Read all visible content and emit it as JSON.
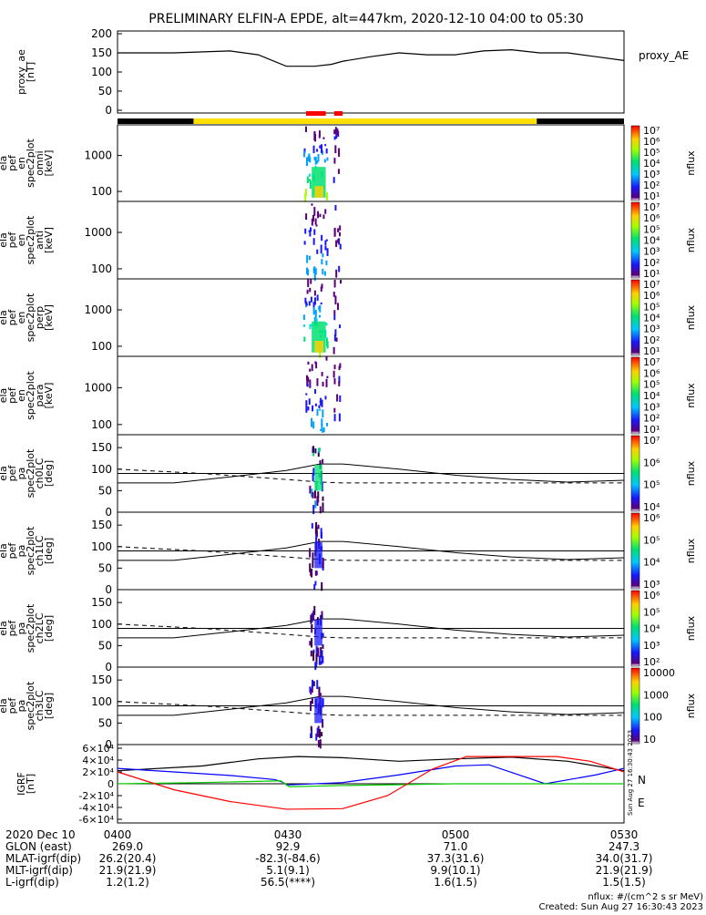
{
  "title": "PRELIMINARY ELFIN-A EPDE, alt=447km, 2020-12-10 04:00 to 05:30",
  "colors": {
    "line": "#000000",
    "yellow": "#ffe000",
    "red": "#ff0000",
    "igrf_x": "#0000ff",
    "igrf_y": "#00cc00",
    "igrf_z": "#ff0000"
  },
  "chart_data": [
    {
      "type": "line",
      "panel": "proxy_ae",
      "ylabel_lines": [
        "proxy_ae",
        "[nT]"
      ],
      "ylim": [
        0,
        200
      ],
      "yticks": [
        "0",
        "50",
        "100",
        "150",
        "200"
      ],
      "series": [
        {
          "name": "proxy_AE",
          "x_min": [
            0,
            10,
            20,
            25,
            30,
            35,
            38,
            40,
            45,
            50,
            55,
            60,
            65,
            70,
            75,
            80,
            85,
            90
          ],
          "values": [
            150,
            150,
            155,
            145,
            115,
            115,
            120,
            128,
            140,
            150,
            145,
            145,
            155,
            158,
            150,
            150,
            140,
            130
          ]
        }
      ],
      "legend": "proxy_AE"
    },
    {
      "type": "heatmap",
      "panel": "spec-omni",
      "ylabel_lines": [
        "ela",
        "pef",
        "en",
        "spec2plot",
        "omni",
        "[keV]"
      ],
      "yticks": [
        "100",
        "1000"
      ],
      "yscale": "log",
      "colorbar_ticks": [
        "10¹",
        "10²",
        "10³",
        "10⁴",
        "10⁵",
        "10⁶",
        "10⁷"
      ],
      "colorbar_label": "nflux"
    },
    {
      "type": "heatmap",
      "panel": "spec-anti",
      "ylabel_lines": [
        "ela",
        "pef",
        "en",
        "spec2plot",
        "anti",
        "[keV]"
      ],
      "yticks": [
        "100",
        "1000"
      ],
      "yscale": "log",
      "colorbar_ticks": [
        "10¹",
        "10²",
        "10³",
        "10⁴",
        "10⁵",
        "10⁶",
        "10⁷"
      ],
      "colorbar_label": "nflux"
    },
    {
      "type": "heatmap",
      "panel": "spec-perp",
      "ylabel_lines": [
        "ela",
        "pef",
        "en",
        "spec2plot",
        "perp",
        "[keV]"
      ],
      "yticks": [
        "100",
        "1000"
      ],
      "yscale": "log",
      "colorbar_ticks": [
        "10¹",
        "10²",
        "10³",
        "10⁴",
        "10⁵",
        "10⁶",
        "10⁷"
      ],
      "colorbar_label": "nflux"
    },
    {
      "type": "heatmap",
      "panel": "spec-para",
      "ylabel_lines": [
        "ela",
        "pef",
        "en",
        "spec2plot",
        "para",
        "[keV]"
      ],
      "yticks": [
        "100",
        "1000"
      ],
      "yscale": "log",
      "colorbar_ticks": [
        "10¹",
        "10²",
        "10³",
        "10⁴",
        "10⁵",
        "10⁶",
        "10⁷"
      ],
      "colorbar_label": "nflux"
    },
    {
      "type": "heatmap",
      "panel": "pa-ch0",
      "ylabel_lines": [
        "ela",
        "pef",
        "pa",
        "spec2plot",
        "ch0LC",
        "[deg]"
      ],
      "ylim": [
        0,
        180
      ],
      "yticks": [
        "0",
        "50",
        "100",
        "150"
      ],
      "colorbar_ticks": [
        "10⁴",
        "10⁵",
        "10⁶",
        "10⁷"
      ],
      "colorbar_label": "nflux"
    },
    {
      "type": "heatmap",
      "panel": "pa-ch1",
      "ylabel_lines": [
        "ela",
        "pef",
        "pa",
        "spec2plot",
        "ch1LC",
        "[deg]"
      ],
      "ylim": [
        0,
        180
      ],
      "yticks": [
        "0",
        "50",
        "100",
        "150"
      ],
      "colorbar_ticks": [
        "10³",
        "10⁴",
        "10⁵",
        "10⁶"
      ],
      "colorbar_label": "nflux"
    },
    {
      "type": "heatmap",
      "panel": "pa-ch2",
      "ylabel_lines": [
        "ela",
        "pef",
        "pa",
        "spec2plot",
        "ch2LC",
        "[deg]"
      ],
      "ylim": [
        0,
        180
      ],
      "yticks": [
        "0",
        "50",
        "100",
        "150"
      ],
      "colorbar_ticks": [
        "10²",
        "10³",
        "10⁴",
        "10⁵",
        "10⁶"
      ],
      "colorbar_label": "nflux"
    },
    {
      "type": "heatmap",
      "panel": "pa-ch3",
      "ylabel_lines": [
        "ela",
        "pef",
        "pa",
        "spec2plot",
        "ch3LC",
        "[deg]"
      ],
      "ylim": [
        0,
        180
      ],
      "yticks": [
        "0",
        "50",
        "100",
        "150"
      ],
      "colorbar_ticks": [
        "10",
        "100",
        "1000",
        "10000"
      ],
      "colorbar_label": "nflux"
    },
    {
      "type": "line",
      "panel": "igrf",
      "ylabel_lines": [
        "IGRF",
        "[nT]"
      ],
      "ylim": [
        -60000,
        60000
      ],
      "yticks": [
        "-6×10⁴",
        "-4×10⁴",
        "-2×10⁴",
        "0",
        "2×10⁴",
        "4×10⁴",
        "6×10⁴"
      ],
      "legend_labels": [
        "N",
        "E"
      ],
      "side_stamp": "Sun Aug 27 16:30:43 2023"
    }
  ],
  "time_axis": {
    "label_rows": [
      "2020 Dec 10",
      "GLON (east)",
      "MLAT-igrf(dip)",
      "MLT-igrf(dip)",
      "L-igrf(dip)"
    ],
    "columns": [
      {
        "time": "0400",
        "values": [
          "269.0",
          "26.2(20.4)",
          "21.9(21.9)",
          "1.2(1.2)"
        ]
      },
      {
        "time": "0430",
        "values": [
          "92.9",
          "-82.3(-84.6)",
          "5.1(9.1)",
          "56.5(****)"
        ]
      },
      {
        "time": "0500",
        "values": [
          "71.0",
          "37.3(31.6)",
          "9.9(10.1)",
          "1.6(1.5)"
        ]
      },
      {
        "time": "0530",
        "values": [
          "247.3",
          "34.0(31.7)",
          "21.9(21.9)",
          "1.5(1.5)"
        ]
      }
    ]
  },
  "footer": {
    "units": "nflux: #/(cm^2 s sr MeV)",
    "created": "Created: Sun Aug 27 16:30:43 2023"
  }
}
